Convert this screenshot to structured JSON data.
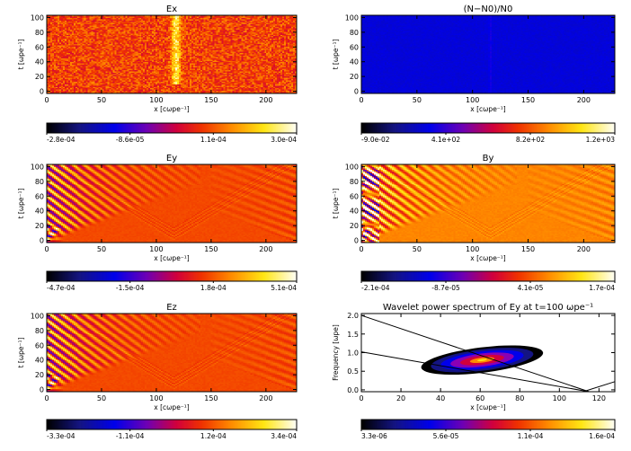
{
  "chart_data": [
    {
      "id": "ex",
      "type": "heatmap",
      "title": "Ex",
      "xlabel": "x [cωpe⁻¹]",
      "ylabel": "t [ωpe⁻¹]",
      "xlim": [
        0,
        228
      ],
      "ylim": [
        -3,
        103
      ],
      "xticks": [
        "0",
        "50",
        "100",
        "150",
        "200"
      ],
      "yticks": [
        "0",
        "20",
        "40",
        "60",
        "80",
        "100"
      ],
      "colorbar": {
        "ticks": [
          "-2.8e-04",
          "-8.6e-05",
          "1.1e-04",
          "3.0e-04"
        ]
      },
      "pattern": "noise"
    },
    {
      "id": "dn",
      "type": "heatmap",
      "title": "(N−N0)/N0",
      "xlabel": "x [cωpe⁻¹]",
      "ylabel": "t [ωpe⁻¹]",
      "xlim": [
        0,
        228
      ],
      "ylim": [
        -3,
        103
      ],
      "xticks": [
        "0",
        "50",
        "100",
        "150",
        "200"
      ],
      "yticks": [
        "0",
        "20",
        "40",
        "60",
        "80",
        "100"
      ],
      "colorbar": {
        "ticks": [
          "-9.0e-02",
          "4.1e+02",
          "8.2e+02",
          "1.2e+03"
        ]
      },
      "pattern": "density"
    },
    {
      "id": "ey",
      "type": "heatmap",
      "title": "Ey",
      "xlabel": "x [cωpe⁻¹]",
      "ylabel": "t [ωpe⁻¹]",
      "xlim": [
        0,
        228
      ],
      "ylim": [
        -3,
        103
      ],
      "xticks": [
        "0",
        "50",
        "100",
        "150",
        "200"
      ],
      "yticks": [
        "0",
        "20",
        "40",
        "60",
        "80",
        "100"
      ],
      "colorbar": {
        "ticks": [
          "-4.7e-04",
          "-1.5e-04",
          "1.8e-04",
          "5.1e-04"
        ]
      },
      "pattern": "waves"
    },
    {
      "id": "by",
      "type": "heatmap",
      "title": "By",
      "xlabel": "x [cωpe⁻¹]",
      "ylabel": "t [ωpe⁻¹]",
      "xlim": [
        0,
        228
      ],
      "ylim": [
        -3,
        103
      ],
      "xticks": [
        "0",
        "50",
        "100",
        "150",
        "200"
      ],
      "yticks": [
        "0",
        "20",
        "40",
        "60",
        "80",
        "100"
      ],
      "colorbar": {
        "ticks": [
          "-2.1e-04",
          "-8.7e-05",
          "4.1e-05",
          "1.7e-04"
        ]
      },
      "pattern": "bwaves"
    },
    {
      "id": "ez",
      "type": "heatmap",
      "title": "Ez",
      "xlabel": "x [cωpe⁻¹]",
      "ylabel": "t [ωpe⁻¹]",
      "xlim": [
        0,
        228
      ],
      "ylim": [
        -3,
        103
      ],
      "xticks": [
        "0",
        "50",
        "100",
        "150",
        "200"
      ],
      "yticks": [
        "0",
        "20",
        "40",
        "60",
        "80",
        "100"
      ],
      "colorbar": {
        "ticks": [
          "-3.3e-04",
          "-1.1e-04",
          "1.2e-04",
          "3.4e-04"
        ]
      },
      "pattern": "waves"
    },
    {
      "id": "wavelet",
      "type": "heatmap",
      "title": "Wavelet power spectrum of Ey at t=100 ωpe⁻¹",
      "xlabel": "x [cωpe⁻¹]",
      "ylabel": "Frequency [ωpe]",
      "xlim": [
        0,
        128
      ],
      "ylim": [
        -0.05,
        2.05
      ],
      "xticks": [
        "0",
        "20",
        "40",
        "60",
        "80",
        "100",
        "120"
      ],
      "yticks": [
        "0.0",
        "0.5",
        "1.0",
        "1.5",
        "2.0"
      ],
      "colorbar": {
        "ticks": [
          "3.3e-06",
          "5.6e-05",
          "1.1e-04",
          "1.6e-04"
        ]
      },
      "pattern": "blob",
      "lines": [
        {
          "x": [
            0,
            115
          ],
          "y": [
            2.0,
            -0.05
          ]
        },
        {
          "x": [
            0,
            115
          ],
          "y": [
            1.02,
            -0.05
          ]
        },
        {
          "x": [
            112,
            128
          ],
          "y": [
            -0.05,
            0.22
          ]
        }
      ]
    }
  ]
}
